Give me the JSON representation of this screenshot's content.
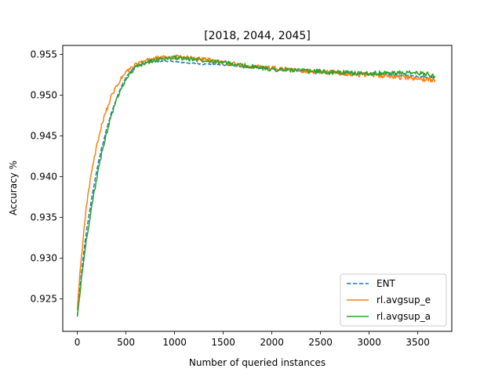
{
  "chart_data": {
    "type": "line",
    "title": "[2018, 2044, 2045]",
    "xlabel": "Number of queried instances",
    "ylabel": "Accuracy %",
    "xlim": [
      -150,
      3850
    ],
    "ylim": [
      0.921,
      0.9561
    ],
    "xticks": [
      0,
      500,
      1000,
      1500,
      2000,
      2500,
      3000,
      3500
    ],
    "xtick_labels": [
      "0",
      "500",
      "1000",
      "1500",
      "2000",
      "2500",
      "3000",
      "3500"
    ],
    "yticks": [
      0.925,
      0.93,
      0.935,
      0.94,
      0.945,
      0.95,
      0.955
    ],
    "ytick_labels": [
      "0.925",
      "0.930",
      "0.935",
      "0.940",
      "0.945",
      "0.950",
      "0.955"
    ],
    "grid": false,
    "legend_position": "bottom-right",
    "series": [
      {
        "name": "ENT",
        "color": "#1f77b4",
        "dash": "dashed",
        "x": [
          0,
          25,
          50,
          75,
          100,
          150,
          200,
          250,
          300,
          350,
          400,
          450,
          500,
          550,
          600,
          700,
          800,
          900,
          1000,
          1100,
          1200,
          1300,
          1400,
          1500,
          1600,
          1700,
          1800,
          1900,
          2000,
          2100,
          2200,
          2300,
          2400,
          2500,
          2600,
          2700,
          2800,
          2900,
          3000,
          3100,
          3200,
          3300,
          3400,
          3500,
          3600,
          3680
        ],
        "y": [
          0.9228,
          0.9262,
          0.929,
          0.9315,
          0.9338,
          0.9375,
          0.9408,
          0.9435,
          0.9458,
          0.9478,
          0.9495,
          0.951,
          0.9522,
          0.953,
          0.9535,
          0.954,
          0.9541,
          0.9542,
          0.9541,
          0.954,
          0.9539,
          0.9538,
          0.9538,
          0.9537,
          0.9536,
          0.9535,
          0.9534,
          0.9533,
          0.9532,
          0.9531,
          0.9531,
          0.953,
          0.9529,
          0.9528,
          0.9528,
          0.9527,
          0.9527,
          0.9526,
          0.9526,
          0.9525,
          0.9525,
          0.9524,
          0.9524,
          0.9523,
          0.9522,
          0.9521
        ]
      },
      {
        "name": "rl.avgsup_e",
        "color": "#ff7f0e",
        "dash": "solid",
        "x": [
          0,
          25,
          50,
          75,
          100,
          150,
          200,
          250,
          300,
          350,
          400,
          450,
          500,
          550,
          600,
          700,
          800,
          900,
          1000,
          1100,
          1200,
          1300,
          1400,
          1500,
          1600,
          1700,
          1800,
          1900,
          2000,
          2100,
          2200,
          2300,
          2400,
          2500,
          2600,
          2700,
          2800,
          2900,
          3000,
          3100,
          3200,
          3300,
          3400,
          3500,
          3600,
          3680
        ],
        "y": [
          0.9235,
          0.928,
          0.931,
          0.9345,
          0.937,
          0.9408,
          0.9438,
          0.9462,
          0.9482,
          0.9498,
          0.951,
          0.952,
          0.9528,
          0.9533,
          0.9537,
          0.9542,
          0.9545,
          0.9546,
          0.9547,
          0.9546,
          0.9545,
          0.9544,
          0.9542,
          0.954,
          0.9538,
          0.9537,
          0.9535,
          0.9534,
          0.9533,
          0.9532,
          0.9531,
          0.953,
          0.9529,
          0.9529,
          0.9528,
          0.9527,
          0.9526,
          0.9525,
          0.9525,
          0.9524,
          0.9523,
          0.9522,
          0.9521,
          0.952,
          0.9519,
          0.9518
        ]
      },
      {
        "name": "rl.avgsup_a",
        "color": "#2ca02c",
        "dash": "solid",
        "x": [
          0,
          25,
          50,
          75,
          100,
          150,
          200,
          250,
          300,
          350,
          400,
          450,
          500,
          550,
          600,
          700,
          800,
          900,
          1000,
          1100,
          1200,
          1300,
          1400,
          1500,
          1600,
          1700,
          1800,
          1900,
          2000,
          2100,
          2200,
          2300,
          2400,
          2500,
          2600,
          2700,
          2800,
          2900,
          3000,
          3100,
          3200,
          3300,
          3400,
          3500,
          3600,
          3680
        ],
        "y": [
          0.9228,
          0.9255,
          0.9282,
          0.9306,
          0.9328,
          0.9365,
          0.9398,
          0.9428,
          0.9453,
          0.9475,
          0.9493,
          0.9508,
          0.952,
          0.9528,
          0.9534,
          0.954,
          0.9543,
          0.9545,
          0.9546,
          0.9545,
          0.9544,
          0.9543,
          0.9542,
          0.954,
          0.9538,
          0.9536,
          0.9535,
          0.9533,
          0.9532,
          0.9531,
          0.9531,
          0.953,
          0.9529,
          0.9529,
          0.9528,
          0.9528,
          0.9527,
          0.9527,
          0.9527,
          0.9527,
          0.9527,
          0.9527,
          0.9527,
          0.9527,
          0.9526,
          0.9522
        ]
      }
    ]
  }
}
